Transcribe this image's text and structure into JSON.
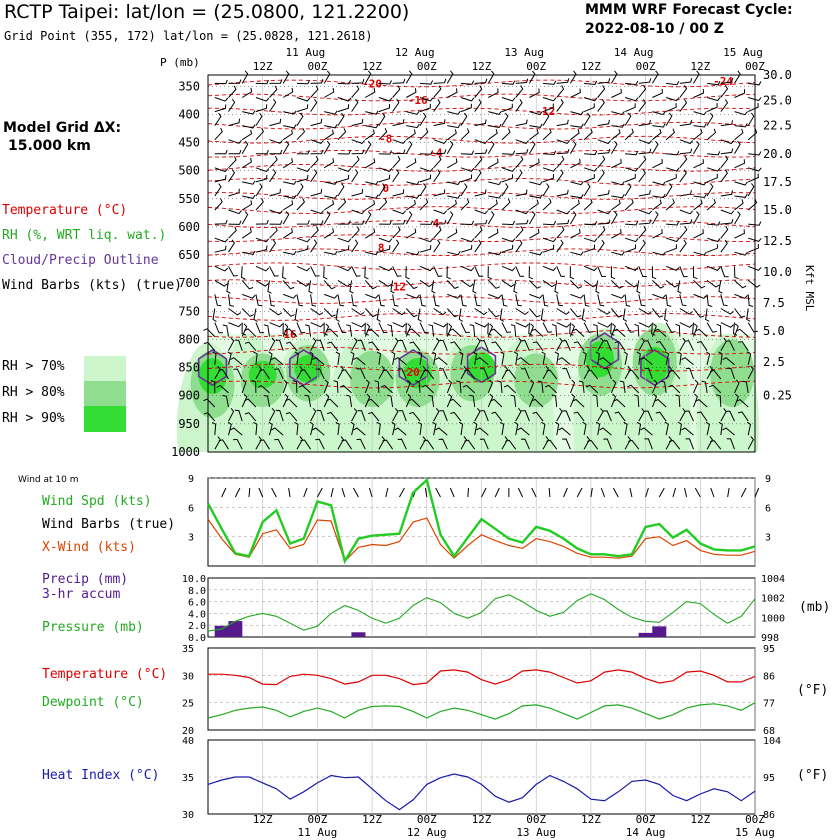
{
  "header": {
    "title": "RCTP Taipei:  lat/lon = (25.0800, 121.2200)",
    "grid_point": "Grid Point (355, 172) lat/lon = (25.0828, 121.2618)",
    "model": "MMM WRF Forecast Cycle:",
    "cycle": "2022-08-10 / 00  Z",
    "grid_dx_line1": "Model Grid ΔX:",
    "grid_dx_line2": "15.000 km"
  },
  "legend": {
    "temperature": "Temperature (°C)",
    "rh": "RH (%, WRT liq. wat.)",
    "cloud": "Cloud/Precip Outline",
    "barbs": "Wind Barbs (kts) (true)",
    "rh70": "RH > 70%",
    "rh80": "RH > 80%",
    "rh90": "RH > 90%",
    "colors": {
      "temperature": "#dd0000",
      "rh70": "#ccf5cc",
      "rh80": "#8fde8f",
      "rh90": "#33dd33",
      "cloud": "#663399"
    }
  },
  "time_axis": {
    "day_labels": [
      "11 Aug",
      "12 Aug",
      "13 Aug",
      "14 Aug",
      "15 Aug"
    ],
    "hour_labels": [
      "12Z",
      "00Z",
      "12Z",
      "00Z",
      "12Z",
      "00Z",
      "12Z",
      "00Z",
      "12Z",
      "00Z"
    ],
    "hour_values": [
      36,
      48,
      60,
      72,
      84,
      96,
      108,
      120,
      132,
      144
    ],
    "x_range_hours": [
      24,
      144
    ]
  },
  "profile": {
    "p_label": "P (mb)",
    "right_axis_label": "Kft MSL",
    "pressure_ticks": [
      "350",
      "400",
      "450",
      "500",
      "550",
      "600",
      "650",
      "700",
      "750",
      "800",
      "850",
      "900",
      "950",
      "1000"
    ],
    "height_ticks": [
      "30.0",
      "25.0",
      "22.5",
      "20.0",
      "17.5",
      "15.0",
      "12.5",
      "10.0",
      "7.5",
      "5.0",
      "2.5",
      "0.25"
    ],
    "temp_labels": [
      {
        "text": "-24",
        "t": 137,
        "p": 341
      },
      {
        "text": "-20",
        "t": 60,
        "p": 345
      },
      {
        "text": "-16",
        "t": 70,
        "p": 374
      },
      {
        "text": "-12",
        "t": 98,
        "p": 394
      },
      {
        "text": "-8",
        "t": 63,
        "p": 443
      },
      {
        "text": "-4",
        "t": 74,
        "p": 468
      },
      {
        "text": "0",
        "t": 63,
        "p": 531
      },
      {
        "text": "4",
        "t": 74,
        "p": 593
      },
      {
        "text": "8",
        "t": 62,
        "p": 637
      },
      {
        "text": "12",
        "t": 66,
        "p": 706
      },
      {
        "text": "16",
        "t": 42,
        "p": 790
      },
      {
        "text": "20",
        "t": 69,
        "p": 858
      }
    ]
  },
  "surface_panels": {
    "wind": {
      "title": "Wind at 10 m",
      "spd": "Wind Spd (kts)",
      "barbs": "Wind Barbs (true)",
      "xwind": "X-Wind (kts)",
      "ticks": [
        "9",
        "6",
        "3"
      ],
      "colors": {
        "spd": "#22cc22",
        "xwind": "#dd4400"
      }
    },
    "precip": {
      "precip": "Precip (mm)",
      "accum": "3-hr accum",
      "pressure": "Pressure (mb)",
      "left_ticks": [
        "10.0",
        "8.0",
        "6.0",
        "4.0",
        "2.0",
        "0.0"
      ],
      "right_ticks": [
        "1004",
        "1002",
        "1000",
        "998"
      ],
      "unit": "(mb)",
      "colors": {
        "precip": "#551a8b",
        "pressure": "#22aa22"
      }
    },
    "temp": {
      "temperature": "Temperature (°C)",
      "dewpoint": "Dewpoint (°C)",
      "left_ticks": [
        "35",
        "30",
        "25",
        "20"
      ],
      "right_ticks": [
        "95",
        "86",
        "77",
        "68"
      ],
      "unit": "(°F)",
      "colors": {
        "temp": "#dd0000",
        "dew": "#22aa22"
      }
    },
    "heat": {
      "heat_index": "Heat Index (°C)",
      "left_ticks": [
        "40",
        "35",
        "30"
      ],
      "right_ticks": [
        "104",
        "95",
        "86"
      ],
      "unit": "(°F)",
      "colors": {
        "heat": "#1a1aaa"
      }
    }
  },
  "chart_data": [
    {
      "type": "line",
      "title": "10 m wind",
      "x_unit": "forecast hour",
      "x": [
        24,
        27,
        30,
        33,
        36,
        39,
        42,
        45,
        48,
        51,
        54,
        57,
        60,
        63,
        66,
        69,
        72,
        75,
        78,
        81,
        84,
        87,
        90,
        93,
        96,
        99,
        102,
        105,
        108,
        111,
        114,
        117,
        120,
        123,
        126,
        129,
        132,
        135,
        138,
        141,
        144
      ],
      "ylim": [
        0,
        9
      ],
      "series": [
        {
          "name": "Wind Spd (kts)",
          "values": [
            6.4,
            3.8,
            1.3,
            1.0,
            4.5,
            5.7,
            2.3,
            2.8,
            6.6,
            6.2,
            0.5,
            2.8,
            3.1,
            3.2,
            3.3,
            7.5,
            8.8,
            3.2,
            1.0,
            2.9,
            4.8,
            3.8,
            2.8,
            2.4,
            4.0,
            3.6,
            2.8,
            1.8,
            1.2,
            1.2,
            1.0,
            1.2,
            4.0,
            4.3,
            2.9,
            3.7,
            2.3,
            1.7,
            1.6,
            1.6,
            2.0
          ]
        },
        {
          "name": "X-Wind (kts)",
          "values": [
            4.8,
            2.8,
            1.2,
            0.9,
            3.3,
            3.7,
            1.8,
            2.2,
            4.7,
            4.6,
            0.5,
            1.9,
            2.2,
            2.1,
            2.5,
            4.5,
            4.9,
            2.2,
            0.8,
            2.1,
            3.2,
            2.6,
            2.1,
            1.8,
            2.8,
            2.5,
            2.0,
            1.3,
            0.9,
            0.9,
            0.8,
            1.0,
            2.8,
            3.0,
            2.1,
            2.6,
            1.6,
            1.2,
            1.1,
            1.1,
            1.5
          ]
        }
      ]
    },
    {
      "type": "bar",
      "title": "Precip (mm) 3-hr accum",
      "x_unit": "forecast hour",
      "x": [
        27,
        30,
        57,
        120,
        123
      ],
      "values": [
        1.9,
        2.7,
        0.8,
        0.7,
        1.8
      ],
      "ylim": [
        0,
        10
      ]
    },
    {
      "type": "line",
      "title": "Pressure (mb)",
      "x": [
        24,
        27,
        30,
        33,
        36,
        39,
        42,
        45,
        48,
        51,
        54,
        57,
        60,
        63,
        66,
        69,
        72,
        75,
        78,
        81,
        84,
        87,
        90,
        93,
        96,
        99,
        102,
        105,
        108,
        111,
        114,
        117,
        120,
        123,
        126,
        129,
        132,
        135,
        138,
        141,
        144
      ],
      "ylim": [
        998,
        1004
      ],
      "series": [
        {
          "name": "Pressure (mb)",
          "values": [
            998.6,
            998.8,
            999.6,
            1000.1,
            1000.4,
            1000.1,
            999.4,
            998.7,
            999.1,
            1000.4,
            1001.2,
            1000.7,
            999.9,
            999.4,
            999.9,
            1001.2,
            1002.0,
            1001.5,
            1000.4,
            999.9,
            1000.5,
            1001.9,
            1002.3,
            1001.6,
            1000.7,
            1000.1,
            1000.5,
            1001.7,
            1002.4,
            1001.8,
            1000.8,
            1000.0,
            999.6,
            999.5,
            1000.5,
            1001.6,
            1001.4,
            1000.3,
            999.4,
            1000.1,
            1001.9
          ]
        }
      ]
    },
    {
      "type": "line",
      "title": "Temperature / Dewpoint (°C)",
      "x": [
        24,
        27,
        30,
        33,
        36,
        39,
        42,
        45,
        48,
        51,
        54,
        57,
        60,
        63,
        66,
        69,
        72,
        75,
        78,
        81,
        84,
        87,
        90,
        93,
        96,
        99,
        102,
        105,
        108,
        111,
        114,
        117,
        120,
        123,
        126,
        129,
        132,
        135,
        138,
        141,
        144
      ],
      "ylim": [
        20,
        35
      ],
      "series": [
        {
          "name": "Temperature (°C)",
          "values": [
            30.2,
            30.2,
            30.0,
            29.6,
            28.4,
            28.3,
            29.8,
            30.2,
            30.0,
            29.4,
            28.4,
            28.8,
            30.0,
            30.0,
            29.4,
            28.3,
            28.6,
            30.8,
            31.0,
            30.6,
            29.2,
            28.4,
            29.2,
            30.8,
            31.0,
            30.6,
            29.6,
            28.6,
            29.0,
            30.6,
            31.0,
            30.6,
            29.4,
            28.6,
            29.0,
            30.6,
            30.8,
            30.0,
            28.8,
            28.8,
            29.8
          ]
        },
        {
          "name": "Dewpoint (°C)",
          "values": [
            22.2,
            22.8,
            23.6,
            24.0,
            24.2,
            23.6,
            22.4,
            23.4,
            24.0,
            23.4,
            22.2,
            23.6,
            24.3,
            24.4,
            24.3,
            23.4,
            22.2,
            23.4,
            24.0,
            23.6,
            22.8,
            22.0,
            23.0,
            24.4,
            24.6,
            24.0,
            23.0,
            22.0,
            23.2,
            24.4,
            24.6,
            24.0,
            23.0,
            22.0,
            22.8,
            24.0,
            24.6,
            24.8,
            24.4,
            23.6,
            25.0
          ]
        }
      ]
    },
    {
      "type": "line",
      "title": "Heat Index (°C)",
      "x": [
        24,
        27,
        30,
        33,
        36,
        39,
        42,
        45,
        48,
        51,
        54,
        57,
        60,
        63,
        66,
        69,
        72,
        75,
        78,
        81,
        84,
        87,
        90,
        93,
        96,
        99,
        102,
        105,
        108,
        111,
        114,
        117,
        120,
        123,
        126,
        129,
        132,
        135,
        138,
        141,
        144
      ],
      "ylim": [
        30,
        40
      ],
      "series": [
        {
          "name": "Heat Index (°C)",
          "values": [
            34.0,
            34.6,
            35.0,
            35.0,
            34.2,
            33.4,
            32.0,
            33.0,
            34.2,
            35.2,
            34.9,
            35.0,
            33.4,
            31.8,
            30.6,
            31.9,
            34.0,
            34.9,
            35.4,
            35.0,
            34.0,
            32.4,
            31.6,
            32.2,
            34.0,
            35.2,
            34.4,
            33.4,
            32.0,
            31.8,
            33.0,
            34.4,
            34.6,
            34.0,
            32.5,
            31.8,
            32.7,
            33.4,
            33.0,
            31.8,
            33.1
          ]
        }
      ]
    }
  ]
}
